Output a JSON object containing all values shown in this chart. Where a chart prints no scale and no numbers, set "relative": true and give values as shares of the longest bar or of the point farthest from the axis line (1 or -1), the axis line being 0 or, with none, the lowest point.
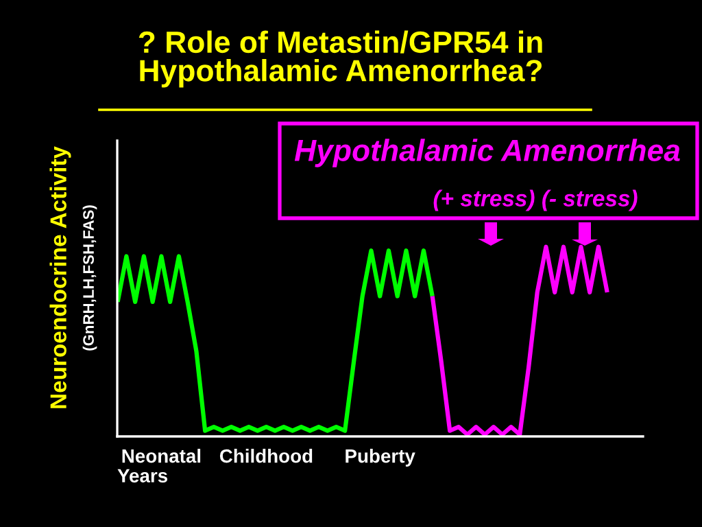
{
  "chart_data": {
    "type": "line",
    "title": "? Role of Metastin/GPR54 in\nHypothalamic Amenorrhea?",
    "xlabel": "Years",
    "ylabel": "Neuroendocrine Activity",
    "annotations": [
      "(GnRH,LH,FSH,FAS)",
      "Hypothalamic Amenorrhea",
      "(+ stress) (- stress)"
    ],
    "relative": true,
    "categories": [
      null,
      null,
      null,
      null,
      null,
      "Neonatal",
      null,
      null,
      null,
      null,
      null,
      null,
      null,
      null,
      null,
      null,
      null,
      "Childhood",
      null,
      null,
      null,
      null,
      null,
      null,
      null,
      null,
      null,
      null,
      null,
      null,
      "Puberty",
      null,
      null,
      null,
      null,
      null,
      null,
      null,
      null,
      null,
      null,
      null,
      null,
      null,
      null,
      null,
      null,
      null,
      null,
      null,
      null,
      null,
      null,
      null,
      null,
      null,
      null
    ],
    "series": [
      {
        "color": "#00ff00",
        "values": [
          0.71,
          0.95,
          0.71,
          0.95,
          0.71,
          0.95,
          0.71,
          0.95,
          0.71,
          0.45,
          0.03,
          0.05,
          0.03,
          0.05,
          0.03,
          0.05,
          0.03,
          0.05,
          0.03,
          0.05,
          0.03,
          0.05,
          0.03,
          0.05,
          0.03,
          0.05,
          0.03,
          0.39,
          0.74,
          0.98,
          0.74,
          0.98,
          0.74,
          0.98,
          0.74,
          0.98,
          0.74,
          null,
          null,
          null,
          null,
          null,
          null,
          null,
          null,
          null,
          null,
          null,
          null,
          null,
          null,
          null,
          null,
          null,
          null,
          null,
          null
        ]
      },
      {
        "color": "#ff00ff",
        "values": [
          null,
          null,
          null,
          null,
          null,
          null,
          null,
          null,
          null,
          null,
          null,
          null,
          null,
          null,
          null,
          null,
          null,
          null,
          null,
          null,
          null,
          null,
          null,
          null,
          null,
          null,
          null,
          null,
          null,
          null,
          null,
          null,
          null,
          null,
          null,
          null,
          0.74,
          0.4,
          0.03,
          0.05,
          0.01,
          0.05,
          0.01,
          0.05,
          0.01,
          0.05,
          0.01,
          0.36,
          0.76,
          1,
          0.76,
          1,
          0.76,
          1,
          0.76,
          1,
          0.76
        ]
      }
    ]
  }
}
